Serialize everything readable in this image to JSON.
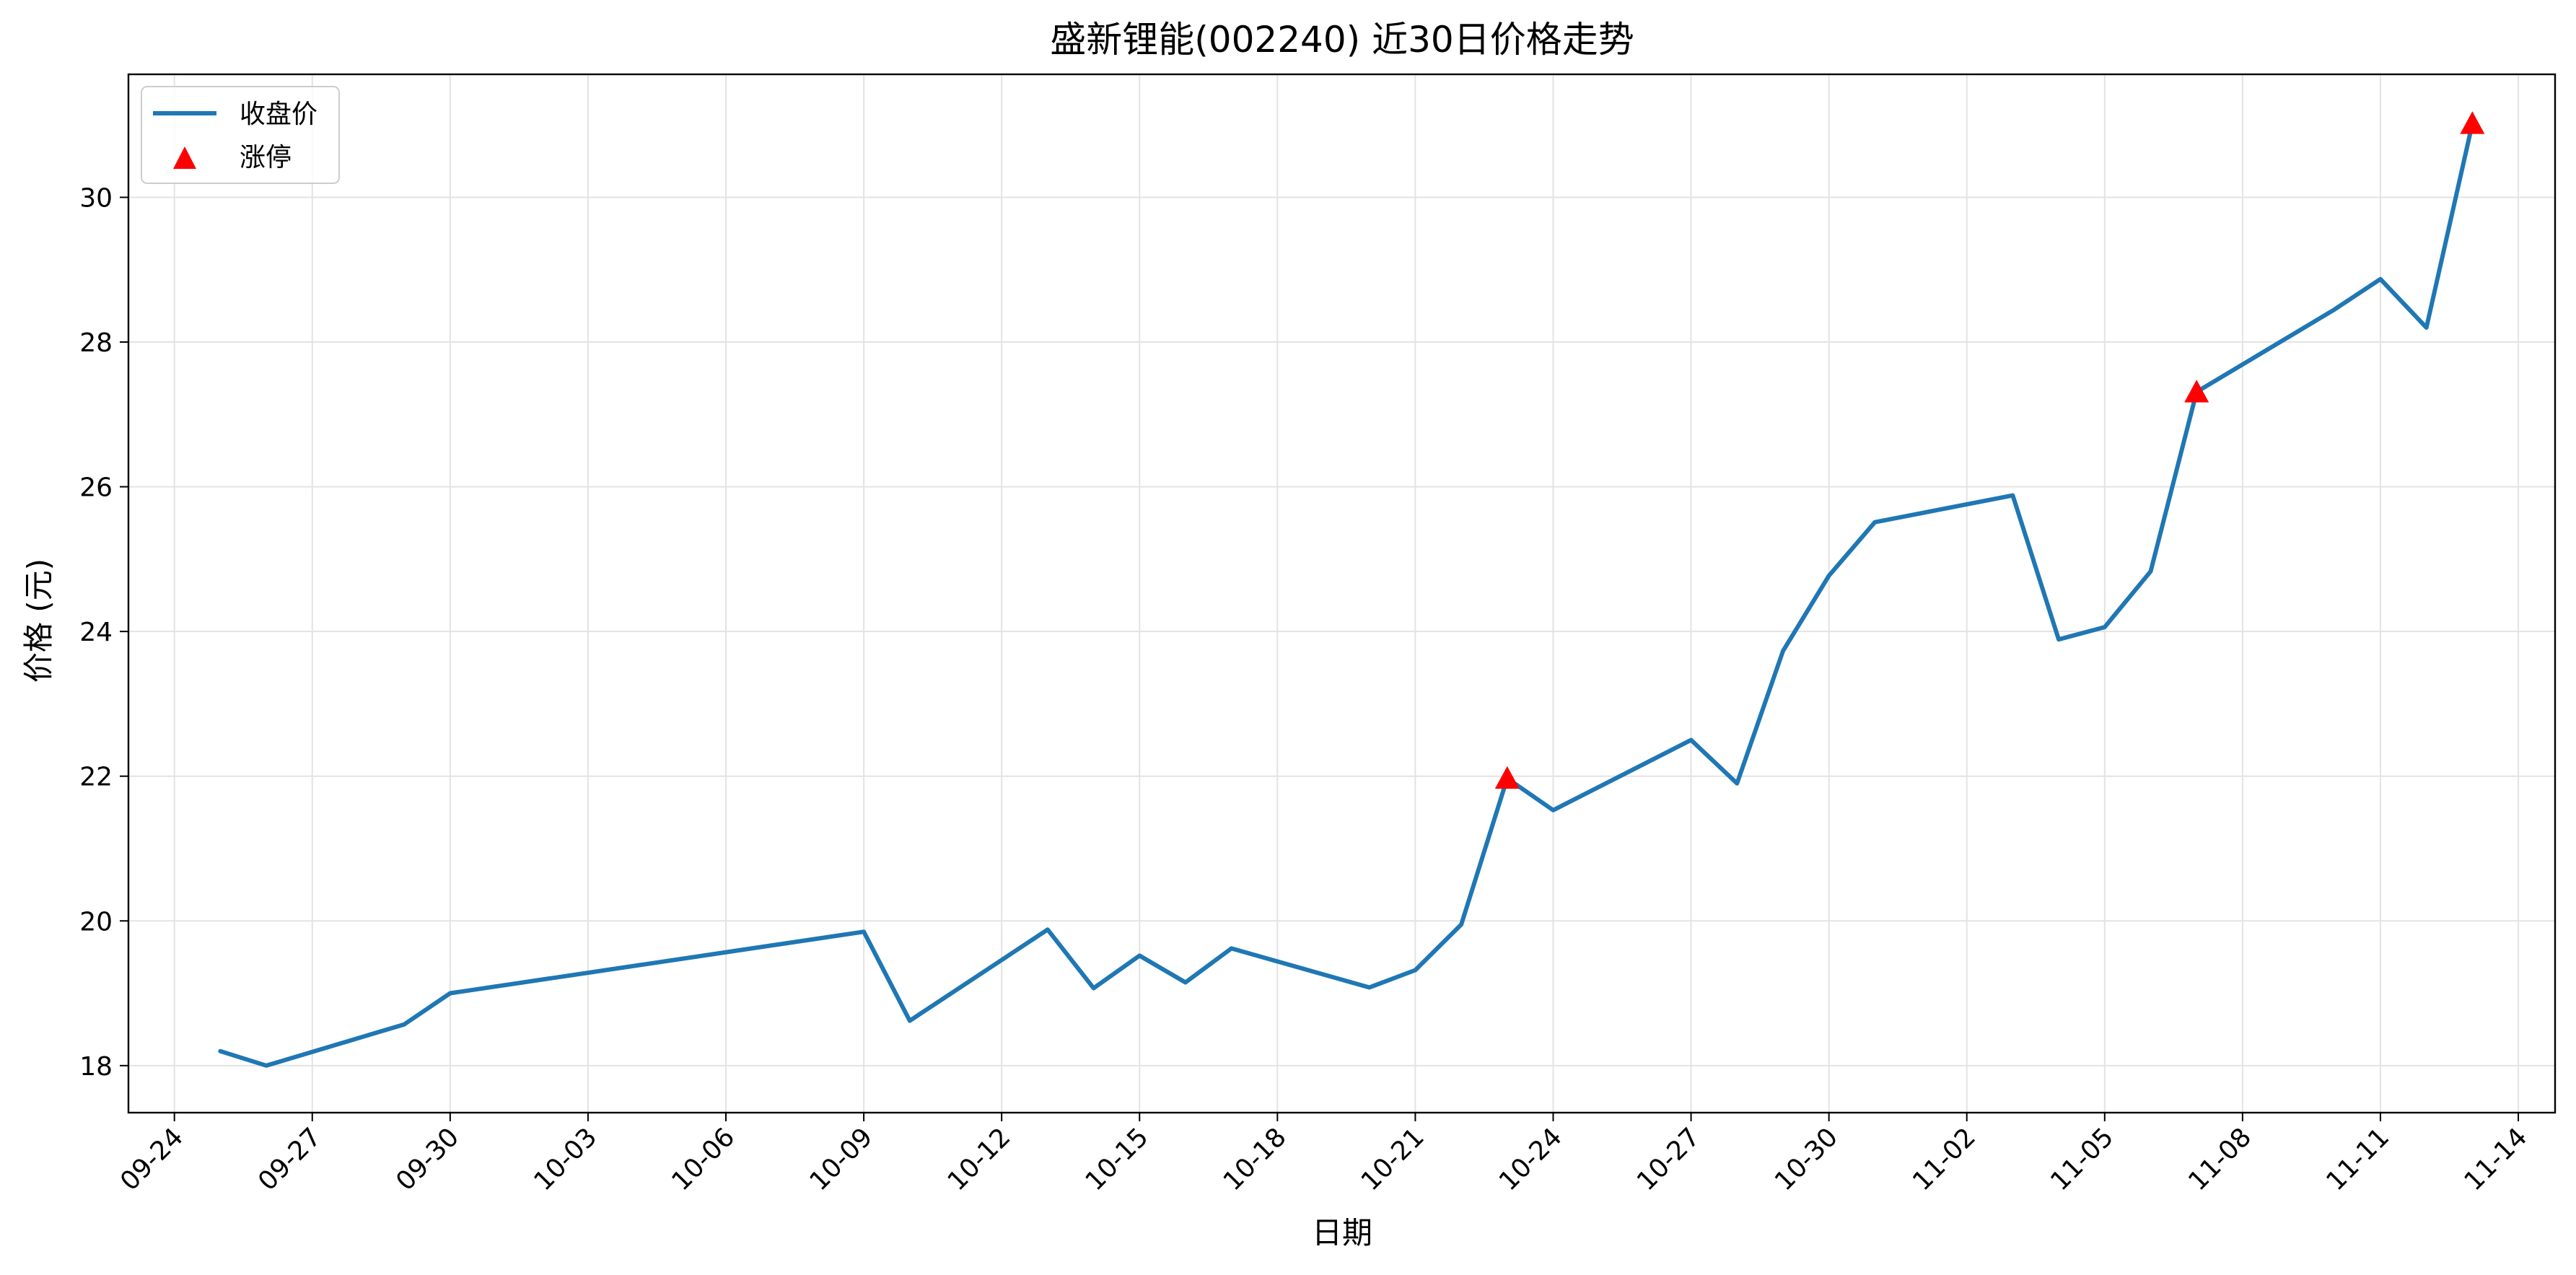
{
  "chart_data": {
    "type": "line",
    "title": "盛新锂能(002240) 近30日价格走势",
    "xlabel": "日期",
    "ylabel": "价格 (元)",
    "x_tick_labels": [
      "09-24",
      "09-27",
      "09-30",
      "10-03",
      "10-06",
      "10-09",
      "10-12",
      "10-15",
      "10-18",
      "10-21",
      "10-24",
      "10-27",
      "10-30",
      "11-02",
      "11-05",
      "11-08",
      "11-11",
      "11-14"
    ],
    "y_ticks": [
      18,
      20,
      22,
      24,
      26,
      28,
      30
    ],
    "ylim": [
      17.35,
      31.7
    ],
    "xlim": [
      "09-24",
      "11-14"
    ],
    "grid": true,
    "legend_position": "top-left",
    "series": [
      {
        "name": "收盘价",
        "type": "line",
        "color": "#1f77b4",
        "x": [
          "09-25",
          "09-26",
          "09-29",
          "09-30",
          "10-09",
          "10-10",
          "10-13",
          "10-14",
          "10-15",
          "10-16",
          "10-17",
          "10-20",
          "10-21",
          "10-22",
          "10-23",
          "10-24",
          "10-27",
          "10-28",
          "10-29",
          "10-30",
          "10-31",
          "11-03",
          "11-04",
          "11-05",
          "11-06",
          "11-07",
          "11-10",
          "11-11",
          "11-12",
          "11-13"
        ],
        "values": [
          18.2,
          18.0,
          18.57,
          19.0,
          19.85,
          18.62,
          19.88,
          19.07,
          19.52,
          19.15,
          19.62,
          19.08,
          19.32,
          19.95,
          21.97,
          21.53,
          22.5,
          21.9,
          23.73,
          24.77,
          25.51,
          25.88,
          23.89,
          24.06,
          24.83,
          27.31,
          28.45,
          28.87,
          28.2,
          31.02
        ]
      },
      {
        "name": "涨停",
        "type": "scatter",
        "marker": "triangle-up",
        "color": "#ff0000",
        "x": [
          "10-23",
          "11-07",
          "11-13"
        ],
        "values": [
          21.97,
          27.31,
          31.02
        ]
      }
    ]
  }
}
